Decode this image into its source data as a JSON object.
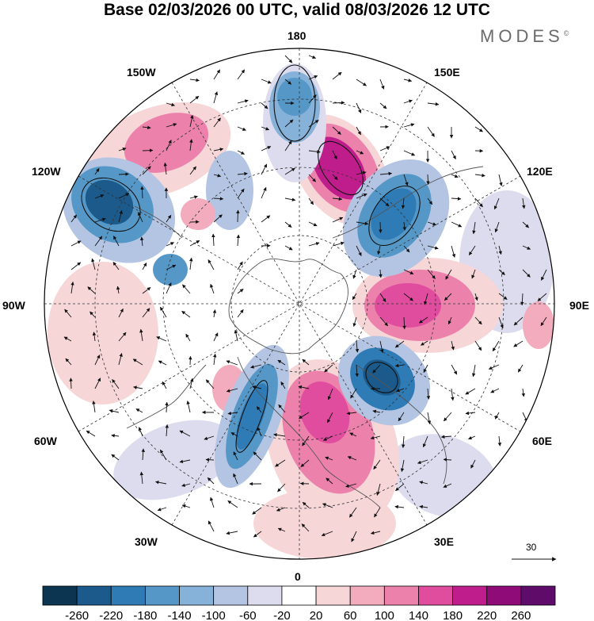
{
  "title": "Base 02/03/2026 00 UTC, valid 08/03/2026 12 UTC",
  "brand": {
    "name": "MODES",
    "mark": "©"
  },
  "longitude_labels": {
    "n": "180",
    "s": "0",
    "e": "90E",
    "w": "90W",
    "ne1": "150E",
    "ne2": "120E",
    "se1": "60E",
    "se2": "30E",
    "nw1": "150W",
    "nw2": "120W",
    "sw1": "60W",
    "sw2": "30W"
  },
  "reference_vector": {
    "label": "30"
  },
  "colorbar": {
    "ticks": [
      "-260",
      "-220",
      "-180",
      "-140",
      "-100",
      "-60",
      "-20",
      "20",
      "60",
      "100",
      "140",
      "180",
      "220",
      "260"
    ],
    "colors": [
      "#0b3551",
      "#1b5a8a",
      "#2f7bb5",
      "#5598c8",
      "#86b1d8",
      "#b4c5e3",
      "#dcdcee",
      "#ffffff",
      "#f7d6d8",
      "#f2acbd",
      "#ec82ab",
      "#e04d9f",
      "#c01d8c",
      "#8e0b78",
      "#5e0b6a"
    ]
  },
  "anomalies": [
    {
      "name": "ne-positive-anomaly",
      "color": "#c01d8c",
      "value": 220
    },
    {
      "name": "east-positive-anomaly",
      "color": "#e04d9f",
      "value": 180
    },
    {
      "name": "south-positive-anomaly",
      "color": "#e04d9f",
      "value": 180
    },
    {
      "name": "north-negative-anomaly",
      "color": "#5598c8",
      "value": -140
    },
    {
      "name": "nw-negative-anomaly",
      "color": "#1b5a8a",
      "value": -220
    },
    {
      "name": "ne-negative-anomaly",
      "color": "#2f7bb5",
      "value": -180
    },
    {
      "name": "se-negative-anomaly",
      "color": "#1b5a8a",
      "value": -220
    },
    {
      "name": "sw-negative-anomaly",
      "color": "#2f7bb5",
      "value": -180
    }
  ]
}
